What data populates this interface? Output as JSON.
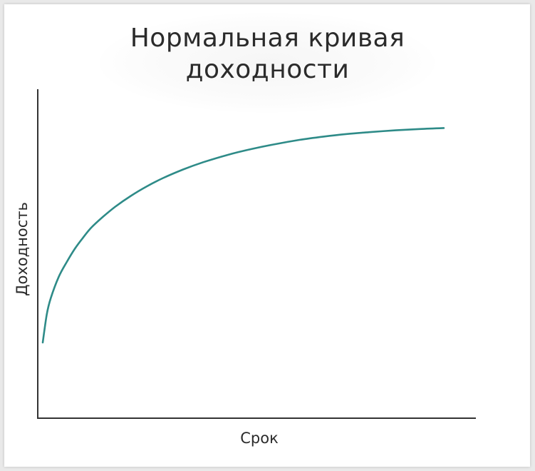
{
  "chart_data": {
    "type": "line",
    "title": [
      "Нормальная кривая",
      "доходности"
    ],
    "xlabel": "Срок",
    "ylabel": "Доходность",
    "series": [
      {
        "color": "#2e8b88",
        "points": [
          [
            0,
            0.23
          ],
          [
            1,
            0.315
          ],
          [
            2,
            0.365
          ],
          [
            4,
            0.43
          ],
          [
            6,
            0.475
          ],
          [
            8,
            0.515
          ],
          [
            10,
            0.548
          ],
          [
            12,
            0.578
          ],
          [
            15,
            0.612
          ],
          [
            18,
            0.642
          ],
          [
            22,
            0.676
          ],
          [
            26,
            0.705
          ],
          [
            30,
            0.73
          ],
          [
            35,
            0.756
          ],
          [
            40,
            0.778
          ],
          [
            46,
            0.8
          ],
          [
            52,
            0.818
          ],
          [
            58,
            0.833
          ],
          [
            64,
            0.846
          ],
          [
            70,
            0.856
          ],
          [
            76,
            0.864
          ],
          [
            82,
            0.87
          ],
          [
            88,
            0.875
          ],
          [
            94,
            0.879
          ],
          [
            100,
            0.882
          ]
        ]
      }
    ],
    "xlim": [
      0,
      100
    ],
    "ylim": [
      0,
      1
    ],
    "grid": false,
    "ticks": false,
    "legend": "none",
    "axis_color": "#333333"
  }
}
